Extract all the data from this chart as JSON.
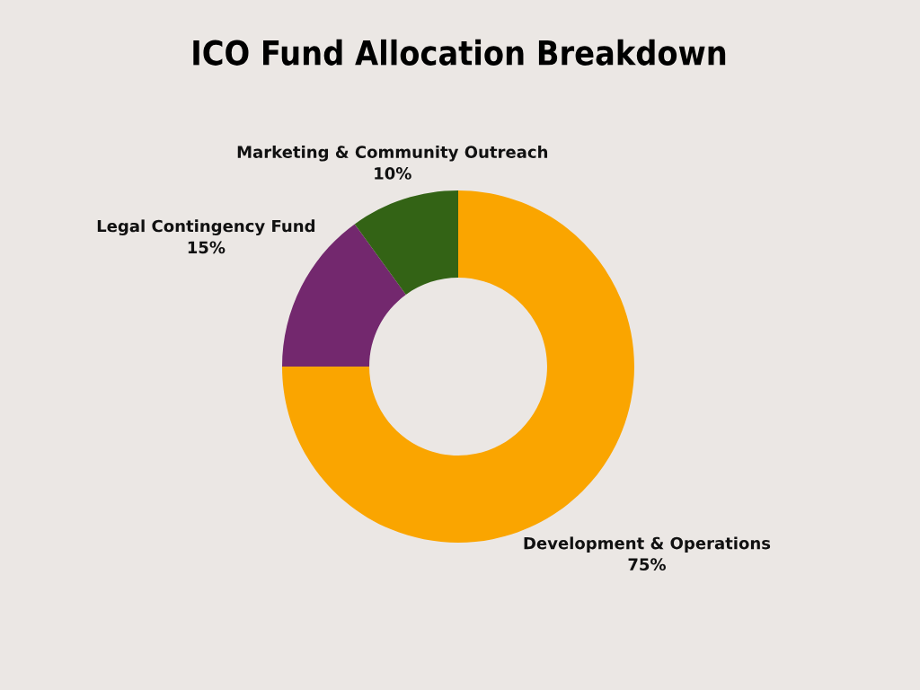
{
  "chart_data": {
    "type": "donut",
    "title": "ICO Fund Allocation Breakdown",
    "categories": [
      "Development & Operations",
      "Legal Contingency Fund",
      "Marketing & Community Outreach"
    ],
    "values": [
      75,
      15,
      10
    ],
    "colors": [
      "#faa500",
      "#73286e",
      "#336315"
    ],
    "value_labels": [
      "75%",
      "15%",
      "10%"
    ]
  }
}
